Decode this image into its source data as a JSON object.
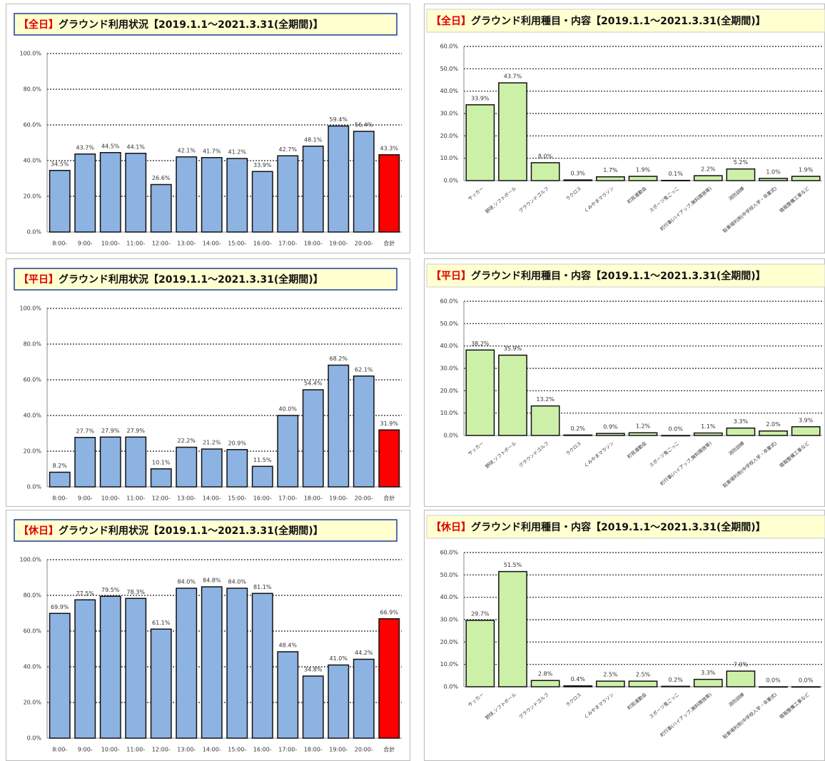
{
  "chart_data": [
    {
      "type": "bar",
      "title_tag": "【全日】",
      "title": "グラウンド利用状況【2019.1.1～2021.3.31(全期間)】",
      "categories": [
        "8:00-",
        "9:00-",
        "10:00-",
        "11:00-",
        "12:00-",
        "13:00-",
        "14:00-",
        "15:00-",
        "16:00-",
        "17:00-",
        "18:00-",
        "19:00-",
        "20:00-",
        "合計"
      ],
      "values": [
        34.5,
        43.7,
        44.5,
        44.1,
        26.6,
        42.1,
        41.7,
        41.2,
        33.9,
        42.7,
        48.1,
        59.4,
        56.4,
        43.3
      ],
      "value_labels": [
        "34.5%",
        "43.7%",
        "44.5%",
        "44.1%",
        "26.6%",
        "42.1%",
        "41.7%",
        "41.2%",
        "33.9%",
        "42.7%",
        "48.1%",
        "59.4%",
        "56.4%",
        "43.3%"
      ],
      "colors": [
        "#8db3e2",
        "#8db3e2",
        "#8db3e2",
        "#8db3e2",
        "#8db3e2",
        "#8db3e2",
        "#8db3e2",
        "#8db3e2",
        "#8db3e2",
        "#8db3e2",
        "#8db3e2",
        "#8db3e2",
        "#8db3e2",
        "#ff0000"
      ],
      "ylim": [
        0,
        100
      ],
      "yticks": [
        {
          "value": 0,
          "label": "0.0%"
        },
        {
          "value": 20,
          "label": "20.0%"
        },
        {
          "value": 40,
          "label": "40.0%"
        },
        {
          "value": 60,
          "label": "60.0%"
        },
        {
          "value": 80,
          "label": "80.0%"
        },
        {
          "value": 100,
          "label": "100.0%"
        }
      ],
      "grid": true
    },
    {
      "type": "bar",
      "title_tag": "【全日】",
      "title": "グラウンド利用種目・内容【2019.1.1～2021.3.31(全期間)】",
      "categories": [
        "サッカー",
        "野球,ソフトボール",
        "グラウンドゴルフ",
        "ラクロス",
        "くみやまマラソン",
        "町民運動会",
        "スポーツ鬼ごっこ",
        "町行事(ハイアップ,無料開放等)",
        "消防訓練",
        "駐車場利用(中学校入学・卒業式)",
        "植栽整備工事など"
      ],
      "values": [
        33.9,
        43.7,
        8.0,
        0.3,
        1.7,
        1.9,
        0.1,
        2.2,
        5.2,
        1.0,
        1.9
      ],
      "value_labels": [
        "33.9%",
        "43.7%",
        "8.0%",
        "0.3%",
        "1.7%",
        "1.9%",
        "0.1%",
        "2.2%",
        "5.2%",
        "1.0%",
        "1.9%"
      ],
      "color": "#ccf0a8",
      "ylim": [
        0,
        60
      ],
      "yticks": [
        {
          "value": 0,
          "label": "0.0%"
        },
        {
          "value": 10,
          "label": "10.0%"
        },
        {
          "value": 20,
          "label": "20.0%"
        },
        {
          "value": 30,
          "label": "30.0%"
        },
        {
          "value": 40,
          "label": "40.0%"
        },
        {
          "value": 50,
          "label": "50.0%"
        },
        {
          "value": 60,
          "label": "60.0%"
        }
      ],
      "grid": true
    },
    {
      "type": "bar",
      "title_tag": "【平日】",
      "title": "グラウンド利用状況【2019.1.1～2021.3.31(全期間)】",
      "categories": [
        "8:00-",
        "9:00-",
        "10:00-",
        "11:00-",
        "12:00-",
        "13:00-",
        "14:00-",
        "15:00-",
        "16:00-",
        "17:00-",
        "18:00-",
        "19:00-",
        "20:00-",
        "合計"
      ],
      "values": [
        8.2,
        27.7,
        27.9,
        27.9,
        10.1,
        22.2,
        21.2,
        20.9,
        11.5,
        40.0,
        54.4,
        68.2,
        62.1,
        31.9
      ],
      "value_labels": [
        "8.2%",
        "27.7%",
        "27.9%",
        "27.9%",
        "10.1%",
        "22.2%",
        "21.2%",
        "20.9%",
        "11.5%",
        "40.0%",
        "54.4%",
        "68.2%",
        "62.1%",
        "31.9%"
      ],
      "colors": [
        "#8db3e2",
        "#8db3e2",
        "#8db3e2",
        "#8db3e2",
        "#8db3e2",
        "#8db3e2",
        "#8db3e2",
        "#8db3e2",
        "#8db3e2",
        "#8db3e2",
        "#8db3e2",
        "#8db3e2",
        "#8db3e2",
        "#ff0000"
      ],
      "ylim": [
        0,
        100
      ],
      "yticks": [
        {
          "value": 0,
          "label": "0.0%"
        },
        {
          "value": 20,
          "label": "20.0%"
        },
        {
          "value": 40,
          "label": "40.0%"
        },
        {
          "value": 60,
          "label": "60.0%"
        },
        {
          "value": 80,
          "label": "80.0%"
        },
        {
          "value": 100,
          "label": "100.0%"
        }
      ],
      "grid": true
    },
    {
      "type": "bar",
      "title_tag": "【平日】",
      "title": "グラウンド利用種目・内容【2019.1.1～2021.3.31(全期間)】",
      "categories": [
        "サッカー",
        "野球,ソフトボール",
        "グラウンドゴルフ",
        "ラクロス",
        "くみやまマラソン",
        "町民運動会",
        "スポーツ鬼ごっこ",
        "町行事(ハイアップ,無料開放等)",
        "消防訓練",
        "駐車場利用(中学校入学・卒業式)",
        "植栽整備工事など"
      ],
      "values": [
        38.2,
        35.9,
        13.2,
        0.2,
        0.9,
        1.2,
        0.0,
        1.1,
        3.3,
        2.0,
        3.9
      ],
      "value_labels": [
        "38.2%",
        "35.9%",
        "13.2%",
        "0.2%",
        "0.9%",
        "1.2%",
        "0.0%",
        "1.1%",
        "3.3%",
        "2.0%",
        "3.9%"
      ],
      "color": "#ccf0a8",
      "ylim": [
        0,
        60
      ],
      "yticks": [
        {
          "value": 0,
          "label": "0.0%"
        },
        {
          "value": 10,
          "label": "10.0%"
        },
        {
          "value": 20,
          "label": "20.0%"
        },
        {
          "value": 30,
          "label": "30.0%"
        },
        {
          "value": 40,
          "label": "40.0%"
        },
        {
          "value": 50,
          "label": "50.0%"
        },
        {
          "value": 60,
          "label": "60.0%"
        }
      ],
      "grid": true
    },
    {
      "type": "bar",
      "title_tag": "【休日】",
      "title": "グラウンド利用状況【2019.1.1～2021.3.31(全期間)】",
      "categories": [
        "8:00-",
        "9:00-",
        "10:00-",
        "11:00-",
        "12:00-",
        "13:00-",
        "14:00-",
        "15:00-",
        "16:00-",
        "17:00-",
        "18:00-",
        "19:00-",
        "20:00-",
        "合計"
      ],
      "values": [
        69.9,
        77.5,
        79.5,
        78.3,
        61.1,
        84.0,
        84.8,
        84.0,
        81.1,
        48.4,
        34.8,
        41.0,
        44.2,
        66.9
      ],
      "value_labels": [
        "69.9%",
        "77.5%",
        "79.5%",
        "78.3%",
        "61.1%",
        "84.0%",
        "84.8%",
        "84.0%",
        "81.1%",
        "48.4%",
        "34.8%",
        "41.0%",
        "44.2%",
        "66.9%"
      ],
      "colors": [
        "#8db3e2",
        "#8db3e2",
        "#8db3e2",
        "#8db3e2",
        "#8db3e2",
        "#8db3e2",
        "#8db3e2",
        "#8db3e2",
        "#8db3e2",
        "#8db3e2",
        "#8db3e2",
        "#8db3e2",
        "#8db3e2",
        "#ff0000"
      ],
      "ylim": [
        0,
        100
      ],
      "yticks": [
        {
          "value": 0,
          "label": "0.0%"
        },
        {
          "value": 20,
          "label": "20.0%"
        },
        {
          "value": 40,
          "label": "40.0%"
        },
        {
          "value": 60,
          "label": "60.0%"
        },
        {
          "value": 80,
          "label": "80.0%"
        },
        {
          "value": 100,
          "label": "100.0%"
        }
      ],
      "grid": true
    },
    {
      "type": "bar",
      "title_tag": "【休日】",
      "title": "グラウンド利用種目・内容【2019.1.1～2021.3.31(全期間)】",
      "categories": [
        "サッカー",
        "野球,ソフトボール",
        "グラウンドゴルフ",
        "ラクロス",
        "くみやまマラソン",
        "町民運動会",
        "スポーツ鬼ごっこ",
        "町行事(ハイアップ,無料開放等)",
        "消防訓練",
        "駐車場利用(中学校入学・卒業式)",
        "植栽整備工事など"
      ],
      "values": [
        29.7,
        51.5,
        2.8,
        0.4,
        2.5,
        2.5,
        0.2,
        3.3,
        7.0,
        0.0,
        0.0
      ],
      "value_labels": [
        "29.7%",
        "51.5%",
        "2.8%",
        "0.4%",
        "2.5%",
        "2.5%",
        "0.2%",
        "3.3%",
        "7.0%",
        "0.0%",
        "0.0%"
      ],
      "color": "#ccf0a8",
      "ylim": [
        0,
        60
      ],
      "yticks": [
        {
          "value": 0,
          "label": "0.0%"
        },
        {
          "value": 10,
          "label": "10.0%"
        },
        {
          "value": 20,
          "label": "20.0%"
        },
        {
          "value": 30,
          "label": "30.0%"
        },
        {
          "value": 40,
          "label": "40.0%"
        },
        {
          "value": 50,
          "label": "50.0%"
        },
        {
          "value": 60,
          "label": "60.0%"
        }
      ],
      "grid": true
    }
  ]
}
